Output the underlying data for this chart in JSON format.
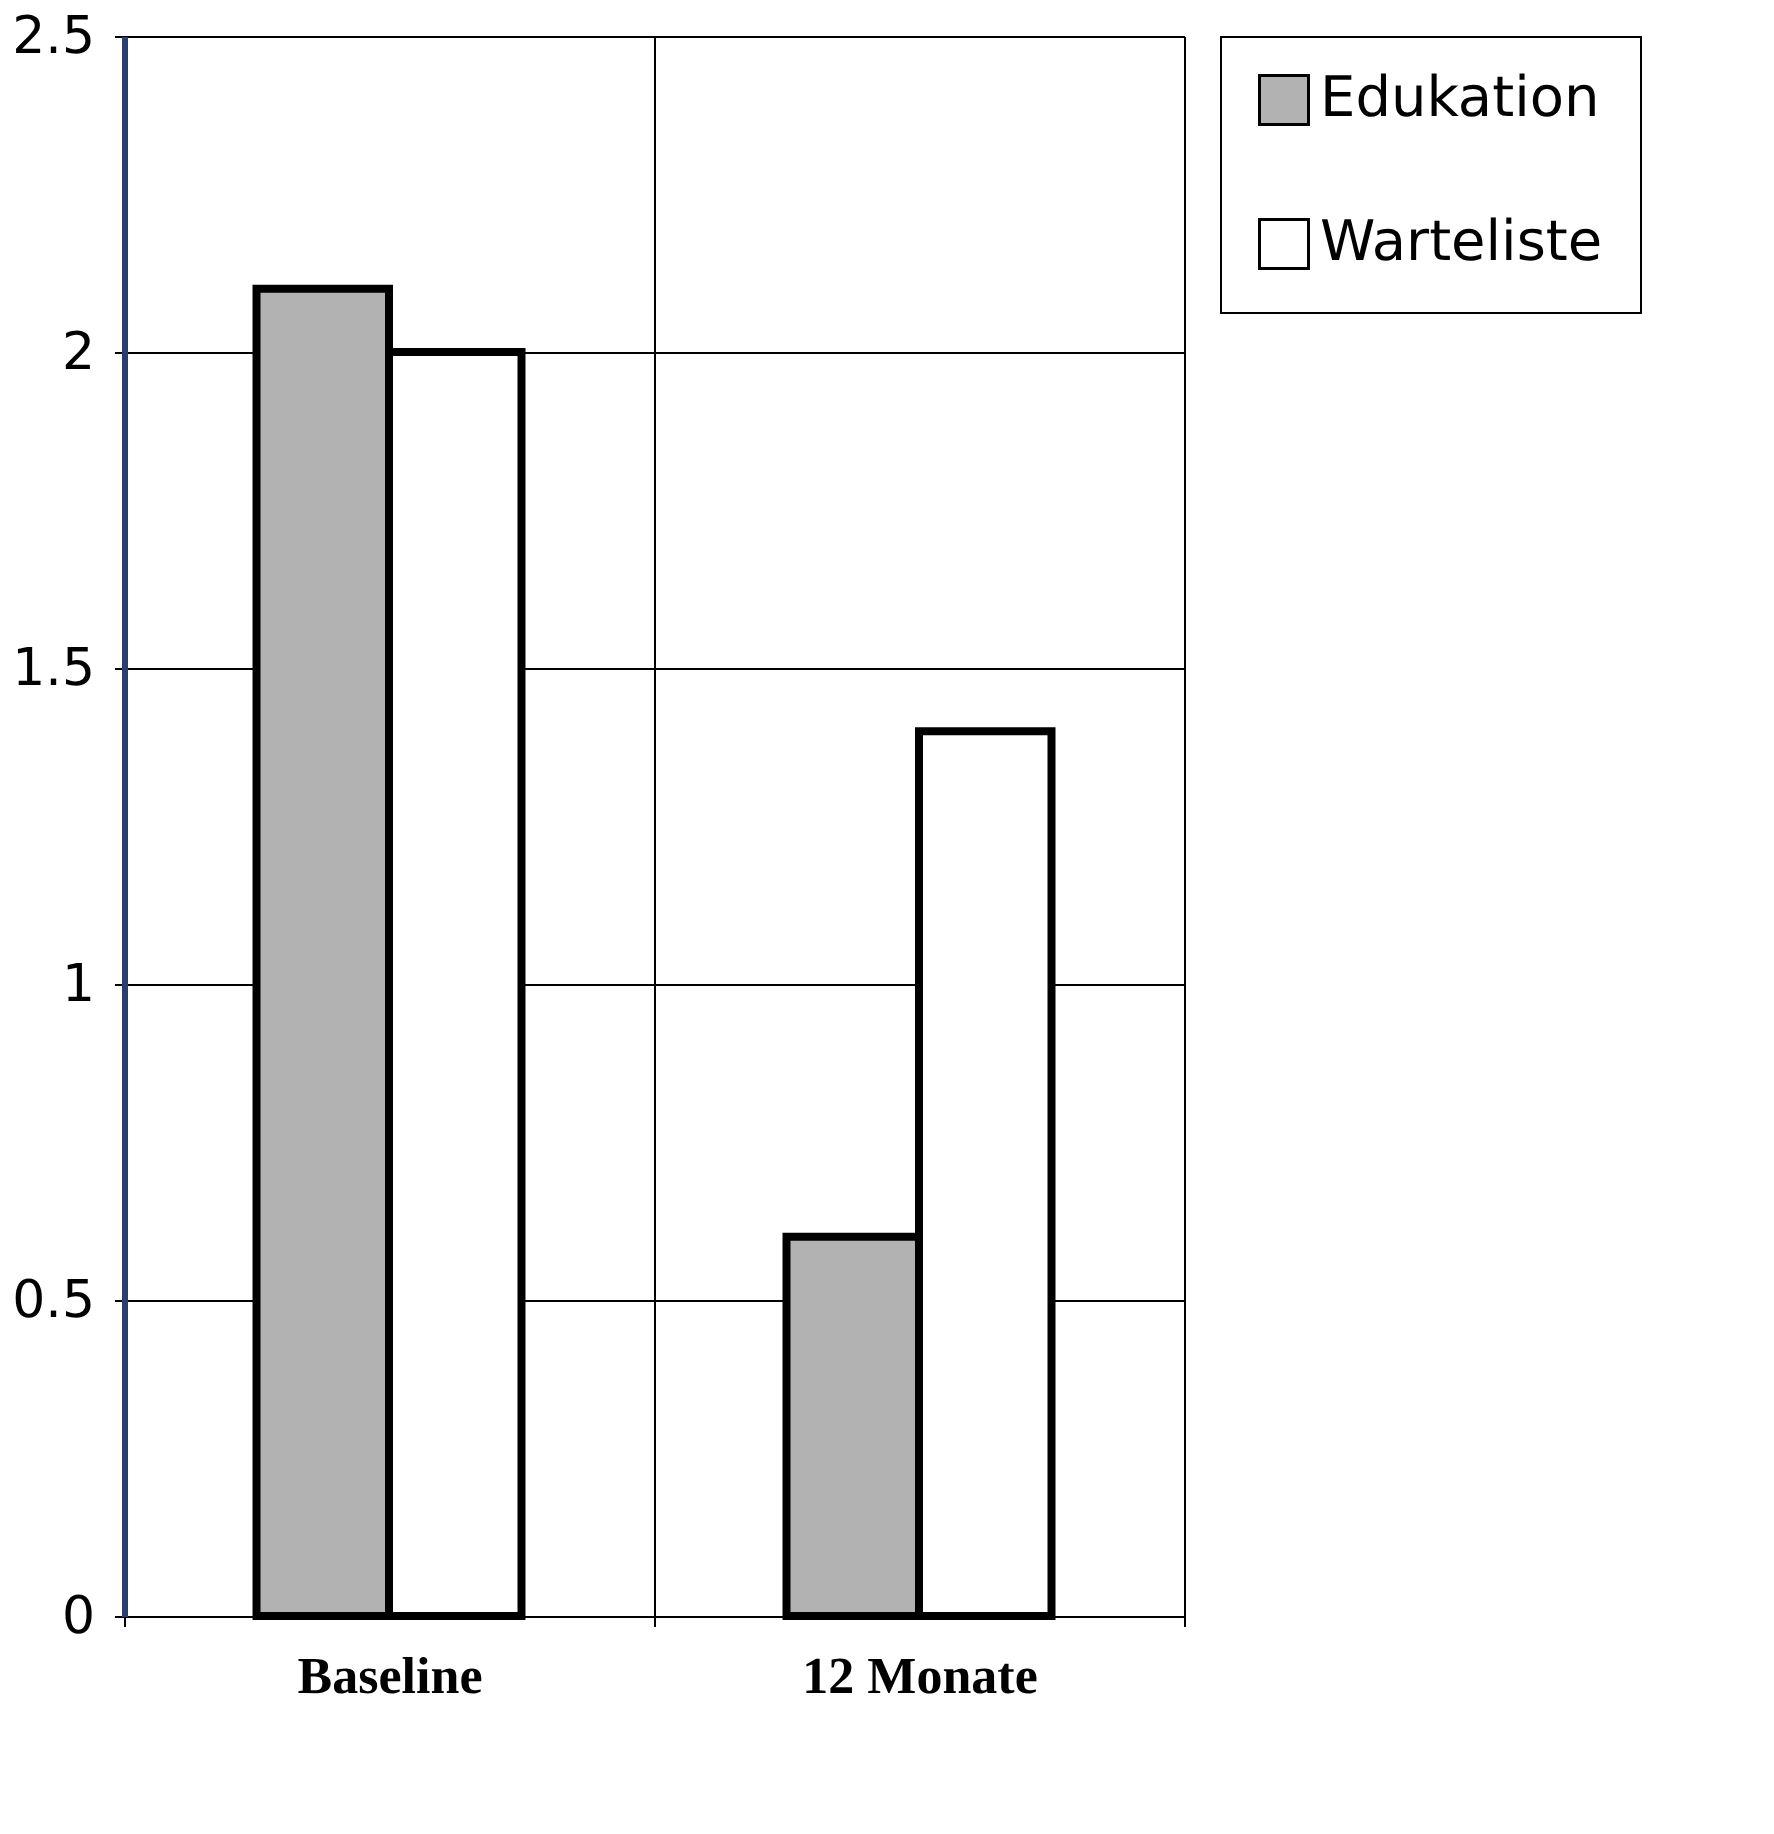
{
  "chart_data": {
    "type": "bar",
    "categories": [
      "Baseline",
      "12 Monate"
    ],
    "series": [
      {
        "name": "Edukation",
        "color": "#b2b2b2",
        "values": [
          2.1,
          0.6
        ]
      },
      {
        "name": "Warteliste",
        "color": "#ffffff",
        "values": [
          2.0,
          1.4
        ]
      }
    ],
    "ylim": [
      0,
      2.5
    ],
    "yticks": [
      0,
      0.5,
      1,
      1.5,
      2,
      2.5
    ],
    "grid": true,
    "legend": "right"
  }
}
